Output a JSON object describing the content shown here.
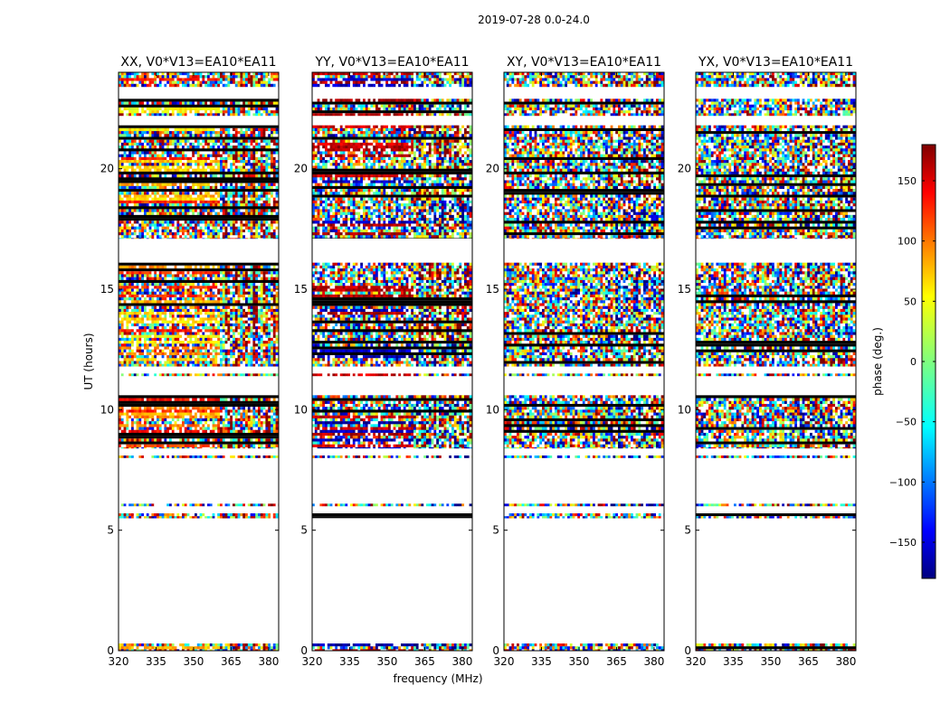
{
  "figure": {
    "suptitle": "2019-07-28 0.0-24.0",
    "xlabel": "frequency (MHz)",
    "ylabel": "UT (hours)"
  },
  "chart_data": {
    "type": "heatmap",
    "xlim": [
      320,
      384
    ],
    "ylim": [
      0,
      24
    ],
    "xticks": [
      320,
      335,
      350,
      365,
      380
    ],
    "xtick_labels": [
      "320",
      "335",
      "350",
      "365",
      "380"
    ],
    "yticks": [
      0,
      5,
      10,
      15,
      20
    ],
    "ytick_labels": [
      "0",
      "5",
      "10",
      "15",
      "20"
    ],
    "data_hours": [
      [
        0.0,
        0.3
      ],
      [
        5.5,
        5.7
      ],
      [
        6.0,
        6.1
      ],
      [
        8.0,
        8.1
      ],
      [
        8.4,
        10.6
      ],
      [
        11.4,
        11.5
      ],
      [
        11.8,
        16.1
      ],
      [
        17.1,
        21.8
      ],
      [
        22.2,
        22.9
      ],
      [
        23.4,
        24.0
      ]
    ],
    "panels": [
      {
        "title": "XX, V0*V13=EA10*EA11",
        "variant": "xx"
      },
      {
        "title": "YY, V0*V13=EA10*EA11",
        "variant": "yy"
      },
      {
        "title": "XY, V0*V13=EA10*EA11",
        "variant": "xy"
      },
      {
        "title": "YX, V0*V13=EA10*EA11",
        "variant": "yx"
      }
    ],
    "colorbar": {
      "label": "phase (deg.)",
      "range": [
        -180,
        180
      ],
      "ticks": [
        150,
        100,
        50,
        0,
        -50,
        -100,
        -150
      ],
      "tick_labels": [
        "150",
        "100",
        "50",
        "0",
        "−50",
        "−100",
        "−150"
      ],
      "colormap": "jet"
    }
  }
}
